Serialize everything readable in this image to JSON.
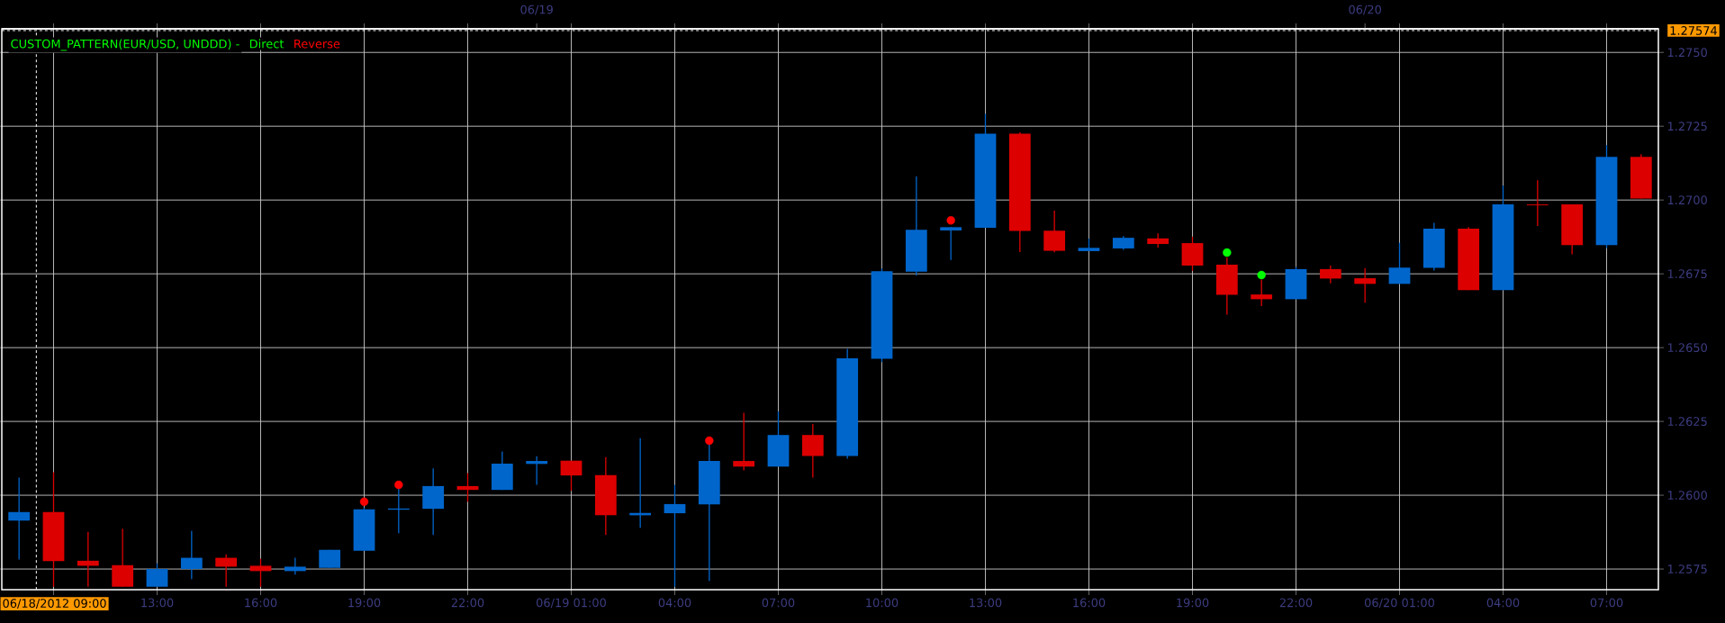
{
  "chart_data": {
    "type": "candlestick",
    "title": "CUSTOM_PATTERN(EUR/USD, UNDDD) -",
    "x": [
      "2012-06-18T09:00",
      "2012-06-18T10:00",
      "2012-06-18T11:00",
      "2012-06-18T12:00",
      "2012-06-18T13:00",
      "2012-06-18T14:00",
      "2012-06-18T15:00",
      "2012-06-18T16:00",
      "2012-06-18T17:00",
      "2012-06-18T18:00",
      "2012-06-18T19:00",
      "2012-06-18T20:00",
      "2012-06-18T21:00",
      "2012-06-18T22:00",
      "2012-06-18T23:00",
      "2012-06-19T00:00",
      "2012-06-19T01:00",
      "2012-06-19T02:00",
      "2012-06-19T03:00",
      "2012-06-19T04:00",
      "2012-06-19T05:00",
      "2012-06-19T06:00",
      "2012-06-19T07:00",
      "2012-06-19T08:00",
      "2012-06-19T09:00",
      "2012-06-19T10:00",
      "2012-06-19T11:00",
      "2012-06-19T12:00",
      "2012-06-19T13:00",
      "2012-06-19T14:00",
      "2012-06-19T15:00",
      "2012-06-19T16:00",
      "2012-06-19T17:00",
      "2012-06-19T18:00",
      "2012-06-19T19:00",
      "2012-06-19T20:00",
      "2012-06-19T21:00",
      "2012-06-19T22:00",
      "2012-06-19T23:00",
      "2012-06-20T00:00",
      "2012-06-20T01:00",
      "2012-06-20T02:00",
      "2012-06-20T03:00",
      "2012-06-20T04:00",
      "2012-06-20T05:00",
      "2012-06-20T06:00",
      "2012-06-20T07:00",
      "2012-06-20T08:00"
    ],
    "ohlc": [
      [
        1.25914,
        1.2606,
        1.25782,
        1.25943
      ],
      [
        1.25943,
        1.26078,
        1.2569,
        1.25777
      ],
      [
        1.25778,
        1.25876,
        1.2569,
        1.25761
      ],
      [
        1.25763,
        1.25887,
        1.2569,
        1.2569
      ],
      [
        1.2569,
        1.25769,
        1.2569,
        1.2575
      ],
      [
        1.2575,
        1.25879,
        1.25716,
        1.25788
      ],
      [
        1.25788,
        1.258,
        1.2569,
        1.25758
      ],
      [
        1.25761,
        1.25785,
        1.2569,
        1.25743
      ],
      [
        1.25743,
        1.25788,
        1.25731,
        1.25758
      ],
      [
        1.25754,
        1.25815,
        1.25754,
        1.25815
      ],
      [
        1.25812,
        1.25958,
        1.25812,
        1.25952
      ],
      [
        1.25951,
        1.26026,
        1.25871,
        1.25955
      ],
      [
        1.25954,
        1.26091,
        1.25865,
        1.26031
      ],
      [
        1.26031,
        1.26075,
        1.25978,
        1.26018
      ],
      [
        1.26018,
        1.26148,
        1.26018,
        1.26107
      ],
      [
        1.26106,
        1.26132,
        1.26035,
        1.26116
      ],
      [
        1.26117,
        1.26117,
        1.26015,
        1.26067
      ],
      [
        1.26068,
        1.26129,
        1.25865,
        1.25932
      ],
      [
        1.25932,
        1.26193,
        1.2589,
        1.2594
      ],
      [
        1.25939,
        1.26035,
        1.2569,
        1.2597
      ],
      [
        1.25969,
        1.26173,
        1.2571,
        1.26116
      ],
      [
        1.26116,
        1.26279,
        1.26084,
        1.26097
      ],
      [
        1.26097,
        1.26284,
        1.26097,
        1.26204
      ],
      [
        1.26204,
        1.26241,
        1.2606,
        1.26133
      ],
      [
        1.26133,
        1.26496,
        1.26124,
        1.26464
      ],
      [
        1.26462,
        1.26768,
        1.26451,
        1.26759
      ],
      [
        1.26757,
        1.2708,
        1.26744,
        1.26899
      ],
      [
        1.26897,
        1.26908,
        1.26797,
        1.26908
      ],
      [
        1.26906,
        1.27292,
        1.26906,
        1.27225
      ],
      [
        1.27225,
        1.27229,
        1.26824,
        1.26895
      ],
      [
        1.26896,
        1.26964,
        1.26823,
        1.26828
      ],
      [
        1.26827,
        1.26869,
        1.26827,
        1.26838
      ],
      [
        1.26836,
        1.26878,
        1.26831,
        1.26872
      ],
      [
        1.2687,
        1.26887,
        1.26839,
        1.26851
      ],
      [
        1.26854,
        1.26876,
        1.2676,
        1.26778
      ],
      [
        1.26781,
        1.26806,
        1.26612,
        1.26679
      ],
      [
        1.2668,
        1.26731,
        1.26641,
        1.26664
      ],
      [
        1.26664,
        1.26773,
        1.26664,
        1.26766
      ],
      [
        1.26766,
        1.26778,
        1.26718,
        1.26734
      ],
      [
        1.26735,
        1.26769,
        1.26652,
        1.26716
      ],
      [
        1.26716,
        1.26855,
        1.26716,
        1.26771
      ],
      [
        1.2677,
        1.26923,
        1.26761,
        1.26903
      ],
      [
        1.26903,
        1.26908,
        1.26695,
        1.26695
      ],
      [
        1.26695,
        1.27049,
        1.26695,
        1.26985
      ],
      [
        1.26985,
        1.27067,
        1.26912,
        1.26982
      ],
      [
        1.26985,
        1.26985,
        1.26816,
        1.26847
      ],
      [
        1.26847,
        1.27186,
        1.26837,
        1.27146
      ],
      [
        1.27146,
        1.27155,
        1.27005,
        1.27005
      ]
    ],
    "colors": [
      "#0066cc",
      "#dd0000",
      "#dd0000",
      "#dd0000",
      "#0066cc",
      "#0066cc",
      "#dd0000",
      "#dd0000",
      "#0066cc",
      "#0066cc",
      "#0066cc",
      "#0066cc",
      "#0066cc",
      "#dd0000",
      "#0066cc",
      "#0066cc",
      "#dd0000",
      "#dd0000",
      "#0066cc",
      "#0066cc",
      "#0066cc",
      "#dd0000",
      "#0066cc",
      "#dd0000",
      "#0066cc",
      "#0066cc",
      "#0066cc",
      "#0066cc",
      "#0066cc",
      "#dd0000",
      "#dd0000",
      "#0066cc",
      "#0066cc",
      "#dd0000",
      "#dd0000",
      "#dd0000",
      "#dd0000",
      "#0066cc",
      "#dd0000",
      "#dd0000",
      "#0066cc",
      "#0066cc",
      "#dd0000",
      "#0066cc",
      "#dd0000",
      "#dd0000",
      "#0066cc",
      "#dd0000"
    ],
    "series": [
      {
        "name": "Direct",
        "type": "scatter",
        "color": "#00ff00",
        "x": [
          "2012-06-19T20:00",
          "2012-06-19T21:00"
        ],
        "values": [
          1.26822,
          1.26746
        ]
      },
      {
        "name": "Reverse",
        "type": "scatter",
        "color": "#ff0000",
        "x": [
          "2012-06-18T19:00",
          "2012-06-18T20:00",
          "2012-06-19T05:00",
          "2012-06-19T12:00"
        ],
        "values": [
          1.25978,
          1.26035,
          1.26185,
          1.26931
        ]
      }
    ],
    "marker": "circle",
    "xlim": [
      "2012-06-18T08:30",
      "2012-06-20T08:30"
    ],
    "xticks": [
      {
        "value": "2012-06-18T10:00",
        "label": null
      },
      {
        "value": "2012-06-18T13:00",
        "label": "13:00"
      },
      {
        "value": "2012-06-18T16:00",
        "label": "16:00"
      },
      {
        "value": "2012-06-18T19:00",
        "label": "19:00"
      },
      {
        "value": "2012-06-18T22:00",
        "label": "22:00"
      },
      {
        "value": "2012-06-19T01:00",
        "label": "06/19 01:00"
      },
      {
        "value": "2012-06-19T04:00",
        "label": "04:00"
      },
      {
        "value": "2012-06-19T07:00",
        "label": "07:00"
      },
      {
        "value": "2012-06-19T10:00",
        "label": "10:00"
      },
      {
        "value": "2012-06-19T13:00",
        "label": "13:00"
      },
      {
        "value": "2012-06-19T16:00",
        "label": "16:00"
      },
      {
        "value": "2012-06-19T19:00",
        "label": "19:00"
      },
      {
        "value": "2012-06-19T22:00",
        "label": "22:00"
      },
      {
        "value": "2012-06-20T01:00",
        "label": "06/20 01:00"
      },
      {
        "value": "2012-06-20T04:00",
        "label": "04:00"
      },
      {
        "value": "2012-06-20T07:00",
        "label": "07:00"
      }
    ],
    "x2lim": [
      "2012-06-18T08:30",
      "2012-06-20T08:30"
    ],
    "x2ticks": [
      {
        "value": "2012-06-19T00:00",
        "label": "06/19"
      },
      {
        "value": "2012-06-20T00:00",
        "label": "06/20"
      }
    ],
    "ylim": [
      1.2568,
      1.2758
    ],
    "yticks": [
      {
        "value": 1.2575,
        "label": "1.2575"
      },
      {
        "value": 1.26,
        "label": "1.2600"
      },
      {
        "value": 1.2625,
        "label": "1.2625"
      },
      {
        "value": 1.265,
        "label": "1.2650"
      },
      {
        "value": 1.2675,
        "label": "1.2675"
      },
      {
        "value": 1.27,
        "label": "1.2700"
      },
      {
        "value": 1.2725,
        "label": "1.2725"
      },
      {
        "value": 1.275,
        "label": "1.2750"
      }
    ],
    "ref_lines": [
      {
        "axis": "y",
        "value": 1.27574,
        "label": "1.27574",
        "color": "#ffffff",
        "line_style": "dashed"
      },
      {
        "axis": "x",
        "value": "2012-06-18T09:30",
        "label": "06/18/2012 09:00",
        "color": "#ffffff",
        "line_style": "dashed"
      }
    ],
    "grid": true
  }
}
